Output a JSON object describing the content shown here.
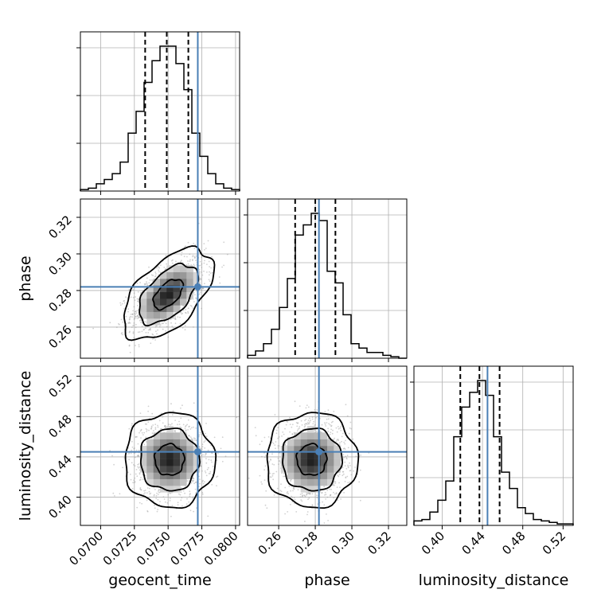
{
  "chart_data": {
    "type": "corner",
    "parameters": [
      {
        "name": "geocent_time",
        "label": "geocent_time",
        "range": [
          0.0685,
          0.0803
        ],
        "ticks": [
          0.07,
          0.0725,
          0.075,
          0.0775,
          0.08
        ],
        "tick_labels": [
          "0.0700",
          "0.0725",
          "0.0750",
          "0.0775",
          "0.0800"
        ],
        "quantiles": [
          0.0733,
          0.0749,
          0.0765
        ],
        "truth": 0.0772
      },
      {
        "name": "phase",
        "label": "phase",
        "range": [
          0.243,
          0.33
        ],
        "ticks": [
          0.26,
          0.28,
          0.3,
          0.32
        ],
        "tick_labels": [
          "0.26",
          "0.28",
          "0.30",
          "0.32"
        ],
        "quantiles": [
          0.269,
          0.28,
          0.291
        ],
        "truth": 0.282
      },
      {
        "name": "luminosity_distance",
        "label": "luminosity_distance",
        "range": [
          0.372,
          0.53
        ],
        "ticks": [
          0.4,
          0.44,
          0.48,
          0.52
        ],
        "tick_labels": [
          "0.40",
          "0.44",
          "0.48",
          "0.52"
        ],
        "quantiles": [
          0.418,
          0.437,
          0.457
        ],
        "truth": 0.445
      }
    ],
    "histograms": [
      {
        "parameter": "geocent_time",
        "bin_edges": [
          0.0685,
          0.06909,
          0.06968,
          0.07027,
          0.07086,
          0.07145,
          0.07204,
          0.07263,
          0.07322,
          0.07381,
          0.0744,
          0.07499,
          0.07558,
          0.07617,
          0.07676,
          0.07735,
          0.07794,
          0.07853,
          0.07912,
          0.07971,
          0.0803
        ],
        "counts": [
          0.01,
          0.02,
          0.05,
          0.08,
          0.12,
          0.2,
          0.4,
          0.55,
          0.75,
          0.9,
          1.0,
          1.0,
          0.88,
          0.7,
          0.4,
          0.24,
          0.12,
          0.05,
          0.02,
          0.01
        ]
      },
      {
        "parameter": "phase",
        "bin_edges": [
          0.243,
          0.24735,
          0.2517,
          0.25605,
          0.2604,
          0.26475,
          0.2691,
          0.27345,
          0.2778,
          0.28215,
          0.2865,
          0.29085,
          0.2952,
          0.29955,
          0.3039,
          0.30825,
          0.3126,
          0.31695,
          0.3213,
          0.32565,
          0.33
        ],
        "counts": [
          0.02,
          0.05,
          0.1,
          0.2,
          0.35,
          0.55,
          0.85,
          0.92,
          1.0,
          0.95,
          0.6,
          0.52,
          0.3,
          0.1,
          0.07,
          0.04,
          0.04,
          0.02,
          0.01,
          0.0
        ]
      },
      {
        "parameter": "luminosity_distance",
        "bin_edges": [
          0.372,
          0.3799,
          0.3878,
          0.3957,
          0.4036,
          0.4115,
          0.4194,
          0.4273,
          0.4352,
          0.4431,
          0.451,
          0.4589,
          0.4668,
          0.4747,
          0.4826,
          0.4905,
          0.4984,
          0.5063,
          0.5142,
          0.5221,
          0.53
        ],
        "counts": [
          0.03,
          0.04,
          0.09,
          0.17,
          0.3,
          0.6,
          0.8,
          0.9,
          0.98,
          0.88,
          0.6,
          0.36,
          0.25,
          0.12,
          0.08,
          0.04,
          0.03,
          0.02,
          0.01,
          0.01
        ]
      }
    ],
    "pairs": [
      {
        "x": "geocent_time",
        "y": "phase",
        "center": [
          0.075,
          0.278
        ],
        "sigma": [
          0.0011,
          0.0082
        ],
        "rho": 0.55
      },
      {
        "x": "geocent_time",
        "y": "luminosity_distance",
        "center": [
          0.0751,
          0.437
        ],
        "sigma": [
          0.0011,
          0.0155
        ],
        "rho": 0.0
      },
      {
        "x": "phase",
        "y": "luminosity_distance",
        "center": [
          0.278,
          0.437
        ],
        "sigma": [
          0.0082,
          0.0155
        ],
        "rho": 0.0
      }
    ],
    "contour_levels": [
      0.39,
      0.86,
      0.99
    ],
    "grid": true,
    "title": ""
  }
}
